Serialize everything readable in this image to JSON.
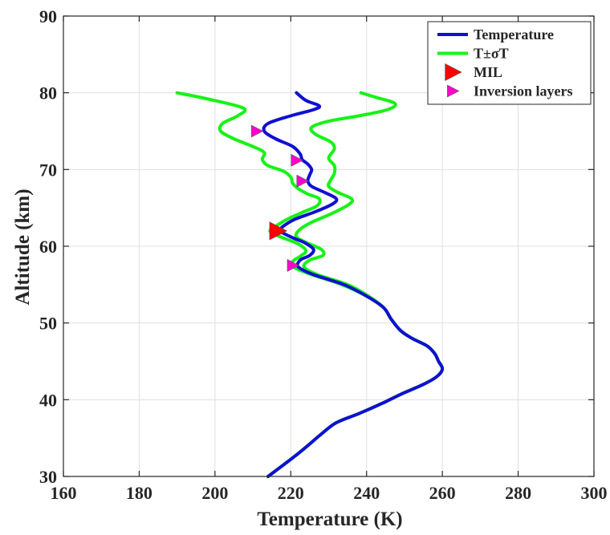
{
  "chart_data": {
    "type": "line",
    "xlabel": "Temperature (K)",
    "ylabel": "Altitude (km)",
    "xlim": [
      160,
      300
    ],
    "ylim": [
      30,
      90
    ],
    "xticks": [
      160,
      180,
      200,
      220,
      240,
      260,
      280,
      300
    ],
    "yticks": [
      30,
      40,
      50,
      60,
      70,
      80,
      90
    ],
    "grid": true,
    "legend_position": "top-right",
    "legend": [
      {
        "label": "Temperature",
        "kind": "line",
        "color": "#1010d0"
      },
      {
        "label": "T±σT",
        "kind": "line",
        "color": "#17f217"
      },
      {
        "label": "MIL",
        "kind": "marker",
        "color": "#ff0000"
      },
      {
        "label": "Inversion layers",
        "kind": "marker",
        "color": "#ff00cc"
      }
    ],
    "series": [
      {
        "name": "Temperature",
        "color": "#1010d0",
        "points": [
          [
            214,
            30
          ],
          [
            222,
            33
          ],
          [
            228,
            35.5
          ],
          [
            232,
            37
          ],
          [
            238,
            38.2
          ],
          [
            244,
            39.5
          ],
          [
            249,
            40.7
          ],
          [
            255,
            42
          ],
          [
            258.5,
            43
          ],
          [
            260,
            44
          ],
          [
            259,
            45
          ],
          [
            258,
            46
          ],
          [
            256,
            47
          ],
          [
            252,
            48
          ],
          [
            249,
            49
          ],
          [
            246.5,
            50.5
          ],
          [
            244.5,
            52
          ],
          [
            240,
            53.5
          ],
          [
            234,
            55
          ],
          [
            226,
            56.3
          ],
          [
            222,
            57.3
          ],
          [
            222.5,
            58.2
          ],
          [
            225,
            58.8
          ],
          [
            226,
            59.6
          ],
          [
            223.5,
            60.5
          ],
          [
            221,
            61
          ],
          [
            218,
            61.7
          ],
          [
            217,
            62
          ],
          [
            218,
            62.6
          ],
          [
            221,
            63.5
          ],
          [
            226.5,
            64.5
          ],
          [
            231,
            65.5
          ],
          [
            232,
            66.2
          ],
          [
            229,
            67
          ],
          [
            225.5,
            67.8
          ],
          [
            224.5,
            68.5
          ],
          [
            225,
            69.3
          ],
          [
            225.5,
            70
          ],
          [
            224.5,
            70.7
          ],
          [
            223,
            71.3
          ],
          [
            222.5,
            72
          ],
          [
            220.5,
            73
          ],
          [
            216,
            74
          ],
          [
            213,
            75
          ],
          [
            214,
            76
          ],
          [
            220,
            77
          ],
          [
            226,
            77.8
          ],
          [
            227.5,
            78.3
          ],
          [
            224,
            79
          ],
          [
            221.5,
            80
          ]
        ]
      },
      {
        "name": "T+σT",
        "color": "#17f217",
        "points": [
          [
            214,
            30
          ],
          [
            222,
            33
          ],
          [
            228,
            35.5
          ],
          [
            232,
            37
          ],
          [
            238,
            38.2
          ],
          [
            244,
            39.5
          ],
          [
            249,
            40.7
          ],
          [
            255,
            42
          ],
          [
            258.5,
            43
          ],
          [
            260,
            44
          ],
          [
            259,
            45
          ],
          [
            258,
            46
          ],
          [
            256,
            47
          ],
          [
            252,
            48
          ],
          [
            249,
            49
          ],
          [
            246.5,
            50.5
          ],
          [
            244.5,
            52
          ],
          [
            240.5,
            53.5
          ],
          [
            235,
            55
          ],
          [
            227,
            56.3
          ],
          [
            223.5,
            57.3
          ],
          [
            225,
            58.2
          ],
          [
            228.5,
            58.8
          ],
          [
            228,
            59.6
          ],
          [
            224,
            60.5
          ],
          [
            221.5,
            61.2
          ],
          [
            222,
            62
          ],
          [
            225,
            63
          ],
          [
            231,
            64.3
          ],
          [
            235.5,
            65.5
          ],
          [
            236,
            66.2
          ],
          [
            232.5,
            67
          ],
          [
            230,
            67.8
          ],
          [
            230.5,
            68.6
          ],
          [
            231.5,
            69.5
          ],
          [
            231.5,
            70.5
          ],
          [
            230,
            71.5
          ],
          [
            231.5,
            72.7
          ],
          [
            230.5,
            73.6
          ],
          [
            226.5,
            74.6
          ],
          [
            225.5,
            75.5
          ],
          [
            230,
            76.3
          ],
          [
            238,
            77
          ],
          [
            245.5,
            77.8
          ],
          [
            247.5,
            78.6
          ],
          [
            242.5,
            79.4
          ],
          [
            238.5,
            80
          ]
        ]
      },
      {
        "name": "T-σT",
        "color": "#17f217",
        "points": [
          [
            214,
            30
          ],
          [
            222,
            33
          ],
          [
            228,
            35.5
          ],
          [
            232,
            37
          ],
          [
            238,
            38.2
          ],
          [
            244,
            39.5
          ],
          [
            249,
            40.7
          ],
          [
            255,
            42
          ],
          [
            258.5,
            43
          ],
          [
            260,
            44
          ],
          [
            259,
            45
          ],
          [
            258,
            46
          ],
          [
            256,
            47
          ],
          [
            252,
            48
          ],
          [
            249,
            49
          ],
          [
            246.5,
            50.5
          ],
          [
            244.5,
            52
          ],
          [
            240,
            53.5
          ],
          [
            233.5,
            55
          ],
          [
            225.5,
            56.3
          ],
          [
            221,
            57.2
          ],
          [
            220.5,
            58
          ],
          [
            222.5,
            58.7
          ],
          [
            224,
            59.4
          ],
          [
            222,
            60.3
          ],
          [
            219,
            60.9
          ],
          [
            216,
            61.5
          ],
          [
            214.5,
            62
          ],
          [
            216,
            62.6
          ],
          [
            219,
            63.5
          ],
          [
            223,
            64.4
          ],
          [
            227,
            65.3
          ],
          [
            227.5,
            66.2
          ],
          [
            224.5,
            66.8
          ],
          [
            222,
            67.5
          ],
          [
            220.5,
            68.2
          ],
          [
            220,
            69
          ],
          [
            218,
            69.8
          ],
          [
            214,
            70.5
          ],
          [
            212.5,
            71.3
          ],
          [
            213,
            72.2
          ],
          [
            210,
            73
          ],
          [
            205,
            74
          ],
          [
            201.5,
            75
          ],
          [
            202,
            76
          ],
          [
            206,
            77
          ],
          [
            207.5,
            78
          ],
          [
            198,
            79.2
          ],
          [
            190,
            80
          ]
        ]
      }
    ],
    "markers": {
      "mil": [
        [
          216.5,
          62
        ]
      ],
      "inversion_layers": [
        [
          211,
          75
        ],
        [
          221.5,
          71.2
        ],
        [
          223,
          68.5
        ],
        [
          220.5,
          57.5
        ]
      ]
    }
  }
}
